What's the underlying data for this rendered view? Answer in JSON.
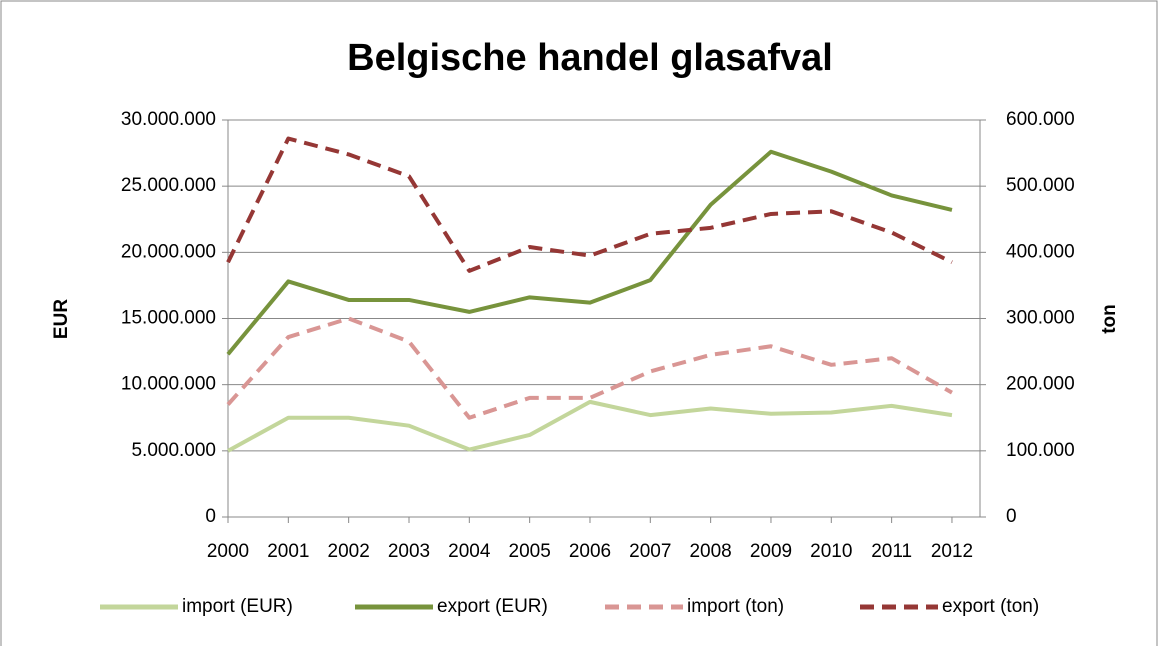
{
  "chart_data": {
    "type": "line",
    "title": "Belgische handel glasafval",
    "y_label": "EUR",
    "y2_label": "ton",
    "categories": [
      "2000",
      "2001",
      "2002",
      "2003",
      "2004",
      "2005",
      "2006",
      "2007",
      "2008",
      "2009",
      "2010",
      "2011",
      "2012"
    ],
    "series": [
      {
        "name": "import (EUR)",
        "color": "#c3d69b",
        "dash": false,
        "values": [
          5000000,
          7500000,
          7500000,
          6900000,
          5100000,
          6200000,
          8700000,
          7700000,
          8200000,
          7800000,
          7900000,
          8400000,
          7700000
        ]
      },
      {
        "name": "export (EUR)",
        "color": "#77933c",
        "dash": false,
        "values": [
          12300000,
          17800000,
          16400000,
          16400000,
          15500000,
          16600000,
          16200000,
          17900000,
          23600000,
          27600000,
          26100000,
          24300000,
          23200000
        ]
      },
      {
        "name": "import (ton)",
        "color": "#d99694",
        "dash": true,
        "axis": "y2",
        "values": [
          170000,
          272000,
          300000,
          265000,
          150000,
          180000,
          180000,
          220000,
          245000,
          258000,
          230000,
          240000,
          188000
        ]
      },
      {
        "name": "export (ton)",
        "color": "#953735",
        "dash": true,
        "axis": "y2",
        "values": [
          385000,
          572000,
          548000,
          515000,
          372000,
          408000,
          395000,
          428000,
          437000,
          458000,
          462000,
          430000,
          385000
        ]
      }
    ],
    "ylim": [
      0,
      30000000
    ],
    "yticks": [
      0,
      {
        "value": 5000000,
        "label": "5.000.000"
      },
      {
        "value": 10000000,
        "label": "10.000.000"
      },
      {
        "value": 15000000,
        "label": "15.000.000"
      },
      {
        "value": 20000000,
        "label": "20.000.000"
      },
      {
        "value": 25000000,
        "label": "25.000.000"
      },
      {
        "value": 30000000,
        "label": "30.000.000"
      }
    ],
    "y2lim": [
      0,
      600000
    ],
    "y2ticks": [
      0,
      {
        "value": 100000,
        "label": "100.000"
      },
      {
        "value": 200000,
        "label": "200.000"
      },
      {
        "value": 300000,
        "label": "300.000"
      },
      {
        "value": 400000,
        "label": "400.000"
      },
      {
        "value": 500000,
        "label": "500.000"
      },
      {
        "value": 600000,
        "label": "600.000"
      }
    ],
    "grid": true,
    "legend": "bottom"
  }
}
